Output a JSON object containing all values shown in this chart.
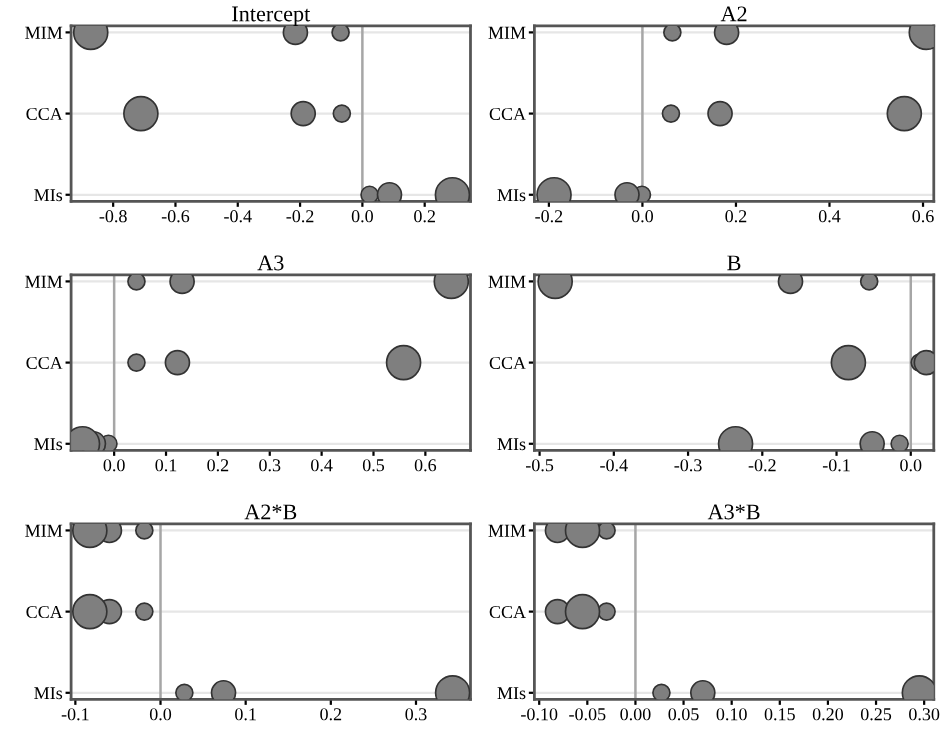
{
  "chart_data": [
    {
      "type": "bubble",
      "title": "Intercept",
      "orientation": "horizontal",
      "categories": [
        "MIM",
        "CCA",
        "MIs"
      ],
      "grid": "y",
      "marker": "circle",
      "xlim": [
        -0.935,
        0.347
      ],
      "xticks": [
        -0.8,
        -0.6,
        -0.4,
        -0.2,
        {
          "value": 0,
          "label": "0.0"
        },
        0.2
      ],
      "ref_lines": [
        {
          "axis": "x",
          "value": 0,
          "color": "#a6a6a6"
        }
      ],
      "series": [
        {
          "color": "#7f7f7f",
          "values": [
            -0.07,
            -0.066,
            0.023
          ],
          "sizes": [
            0.25,
            0.25,
            0.25
          ]
        },
        {
          "color": "#7f7f7f",
          "values": [
            -0.215,
            -0.19,
            0.087
          ],
          "sizes": [
            0.5,
            0.5,
            0.5
          ]
        },
        {
          "color": "#7f7f7f",
          "values": [
            -0.872,
            -0.711,
            0.289
          ],
          "sizes": [
            1,
            1,
            1
          ]
        }
      ]
    },
    {
      "type": "bubble",
      "title": "A2",
      "orientation": "horizontal",
      "categories": [
        "MIM",
        "CCA",
        "MIs"
      ],
      "grid": "y",
      "marker": "circle",
      "xlim": [
        -0.231,
        0.623
      ],
      "xticks": [
        -0.2,
        {
          "value": 0,
          "label": "0.0"
        },
        0.2,
        0.4,
        0.6
      ],
      "ref_lines": [
        {
          "axis": "x",
          "value": 0,
          "color": "#a6a6a6"
        }
      ],
      "series": [
        {
          "color": "#7f7f7f",
          "values": [
            0.064,
            0.061,
            -0.001
          ],
          "sizes": [
            0.25,
            0.25,
            0.25
          ]
        },
        {
          "color": "#7f7f7f",
          "values": [
            0.18,
            0.166,
            -0.033
          ],
          "sizes": [
            0.5,
            0.5,
            0.5
          ]
        },
        {
          "color": "#7f7f7f",
          "values": [
            0.607,
            0.56,
            -0.189
          ],
          "sizes": [
            1,
            1,
            1
          ]
        }
      ]
    },
    {
      "type": "bubble",
      "title": "A3",
      "orientation": "horizontal",
      "categories": [
        "MIM",
        "CCA",
        "MIs"
      ],
      "grid": "y",
      "marker": "circle",
      "xlim": [
        -0.083,
        0.687
      ],
      "xticks": [
        {
          "value": 0,
          "label": "0.0"
        },
        0.1,
        0.2,
        0.3,
        0.4,
        0.5,
        0.6
      ],
      "ref_lines": [
        {
          "axis": "x",
          "value": 0,
          "color": "#a6a6a6"
        }
      ],
      "series": [
        {
          "color": "#7f7f7f",
          "values": [
            0.043,
            0.043,
            -0.011
          ],
          "sizes": [
            0.25,
            0.25,
            0.25
          ]
        },
        {
          "color": "#7f7f7f",
          "values": [
            0.131,
            0.122,
            -0.04
          ],
          "sizes": [
            0.5,
            0.5,
            0.5
          ]
        },
        {
          "color": "#7f7f7f",
          "values": [
            0.65,
            0.558,
            -0.061
          ],
          "sizes": [
            1,
            1,
            1
          ]
        }
      ]
    },
    {
      "type": "bubble",
      "title": "B",
      "orientation": "horizontal",
      "categories": [
        "MIM",
        "CCA",
        "MIs"
      ],
      "grid": "y",
      "marker": "circle",
      "xlim": [
        -0.507,
        0.031
      ],
      "xticks": [
        -0.5,
        -0.4,
        -0.3,
        -0.2,
        -0.1,
        {
          "value": 0,
          "label": "0.0"
        }
      ],
      "ref_lines": [
        {
          "axis": "x",
          "value": 0,
          "color": "#a6a6a6"
        }
      ],
      "series": [
        {
          "color": "#7f7f7f",
          "values": [
            -0.056,
            0.012,
            -0.015
          ],
          "sizes": [
            0.25,
            0.25,
            0.25
          ]
        },
        {
          "color": "#7f7f7f",
          "values": [
            -0.162,
            0.021,
            -0.052
          ],
          "sizes": [
            0.5,
            0.5,
            0.5
          ]
        },
        {
          "color": "#7f7f7f",
          "values": [
            -0.479,
            -0.084,
            -0.236
          ],
          "sizes": [
            1,
            1,
            1
          ]
        }
      ]
    },
    {
      "type": "bubble",
      "title": "A2*B",
      "orientation": "horizontal",
      "categories": [
        "MIM",
        "CCA",
        "MIs"
      ],
      "grid": "y",
      "marker": "circle",
      "xlim": [
        -0.105,
        0.364
      ],
      "xticks": [
        -0.1,
        {
          "value": 0,
          "label": "0.0"
        },
        0.1,
        0.2,
        0.3
      ],
      "ref_lines": [
        {
          "axis": "x",
          "value": 0,
          "color": "#a6a6a6"
        }
      ],
      "series": [
        {
          "color": "#7f7f7f",
          "values": [
            -0.019,
            -0.019,
            0.028
          ],
          "sizes": [
            0.25,
            0.25,
            0.25
          ]
        },
        {
          "color": "#7f7f7f",
          "values": [
            -0.06,
            -0.06,
            0.074
          ],
          "sizes": [
            0.5,
            0.5,
            0.5
          ]
        },
        {
          "color": "#7f7f7f",
          "values": [
            -0.083,
            -0.083,
            0.343
          ],
          "sizes": [
            1,
            1,
            1
          ]
        }
      ]
    },
    {
      "type": "bubble",
      "title": "A3*B",
      "orientation": "horizontal",
      "categories": [
        "MIM",
        "CCA",
        "MIs"
      ],
      "grid": "y",
      "marker": "circle",
      "xlim": [
        -0.105,
        0.31
      ],
      "xticks": [
        {
          "value": -0.1,
          "label": "-0.10"
        },
        {
          "value": -0.05,
          "label": "-0.05"
        },
        {
          "value": 0,
          "label": "0.00"
        },
        0.05,
        {
          "value": 0.1,
          "label": "0.10"
        },
        0.15,
        {
          "value": 0.2,
          "label": "0.20"
        },
        0.25,
        {
          "value": 0.3,
          "label": "0.30"
        }
      ],
      "ref_lines": [
        {
          "axis": "x",
          "value": 0,
          "color": "#a6a6a6"
        }
      ],
      "series": [
        {
          "color": "#7f7f7f",
          "values": [
            -0.03,
            -0.03,
            0.027
          ],
          "sizes": [
            0.25,
            0.25,
            0.25
          ]
        },
        {
          "color": "#7f7f7f",
          "values": [
            -0.081,
            -0.081,
            0.07
          ],
          "sizes": [
            0.5,
            0.5,
            0.5
          ]
        },
        {
          "color": "#7f7f7f",
          "values": [
            -0.055,
            -0.055,
            0.295
          ],
          "sizes": [
            1,
            1,
            1
          ]
        }
      ]
    }
  ]
}
